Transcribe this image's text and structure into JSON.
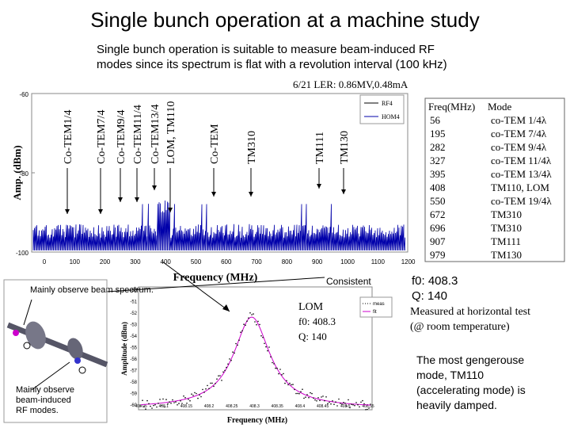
{
  "title": "Single bunch operation at a machine study",
  "subtitle_lines": [
    "Single bunch operation is suitable to measure beam-induced RF",
    "modes since its spectrum is flat with a revolution interval (100 kHz)"
  ],
  "spectrum": {
    "title": "6/21 LER: 0.86MV,0.48mA",
    "y_label": "Amp. (dBm)",
    "x_label": "Frequency (MHz)",
    "yticks": [
      "-60",
      "-80",
      "-100"
    ],
    "xticks": [
      "0",
      "100",
      "200",
      "300",
      "400",
      "500",
      "600",
      "700",
      "800",
      "900",
      "1000",
      "1100",
      "1200"
    ],
    "legend": [
      "RF4",
      "HOM4"
    ],
    "mode_labels": [
      "Co-TEM1/4",
      "Co-TEM7/4",
      "Co-TEM9/4",
      "Co-TEM11/4",
      "Co-TEM13/4",
      "LOM, TM110",
      "Co-TEM",
      "TM310",
      "TM111",
      "TM130"
    ]
  },
  "mode_table": {
    "header": [
      "Freq(MHz)",
      "Mode"
    ],
    "rows": [
      [
        "56",
        "co-TEM 1/4λ"
      ],
      [
        "195",
        "co-TEM 7/4λ"
      ],
      [
        "282",
        "co-TEM 9/4λ"
      ],
      [
        "327",
        "co-TEM 11/4λ"
      ],
      [
        "395",
        "co-TEM 13/4λ"
      ],
      [
        "408",
        "TM110, LOM"
      ],
      [
        "550",
        "co-TEM 19/4λ"
      ],
      [
        "672",
        "TM310"
      ],
      [
        "696",
        "TM310"
      ],
      [
        "907",
        "TM111"
      ],
      [
        "979",
        "TM130"
      ]
    ]
  },
  "consistent": "Consistent",
  "left_notes": [
    "Mainly observe beam spectrum.",
    "Mainly observe beam-induced RF modes."
  ],
  "inset": {
    "y_label": "Amplitude (dBm)",
    "x_label": "Frequency (MHz)",
    "yticks": [
      "-50",
      "-51",
      "-52",
      "-53",
      "-54",
      "-55",
      "-56",
      "-57",
      "-58",
      "-59",
      "-60"
    ],
    "xticks": [
      "408.05",
      "408.1",
      "408.15",
      "408.2",
      "408.25",
      "408.3",
      "408.35",
      "408.4",
      "408.45",
      "408.5",
      "408.55"
    ],
    "legend": [
      "meas",
      "fit"
    ],
    "annotation": [
      "LOM",
      "f0: 408.3",
      "Q: 140"
    ]
  },
  "right_notes": [
    "f0: 408.3",
    "Q: 140",
    "Measured at horizontal test",
    "(@ room temperature)"
  ],
  "bottom_note": [
    "The most gengerouse",
    "mode, TM110",
    "(accelerating mode) is",
    "heavily damped."
  ]
}
